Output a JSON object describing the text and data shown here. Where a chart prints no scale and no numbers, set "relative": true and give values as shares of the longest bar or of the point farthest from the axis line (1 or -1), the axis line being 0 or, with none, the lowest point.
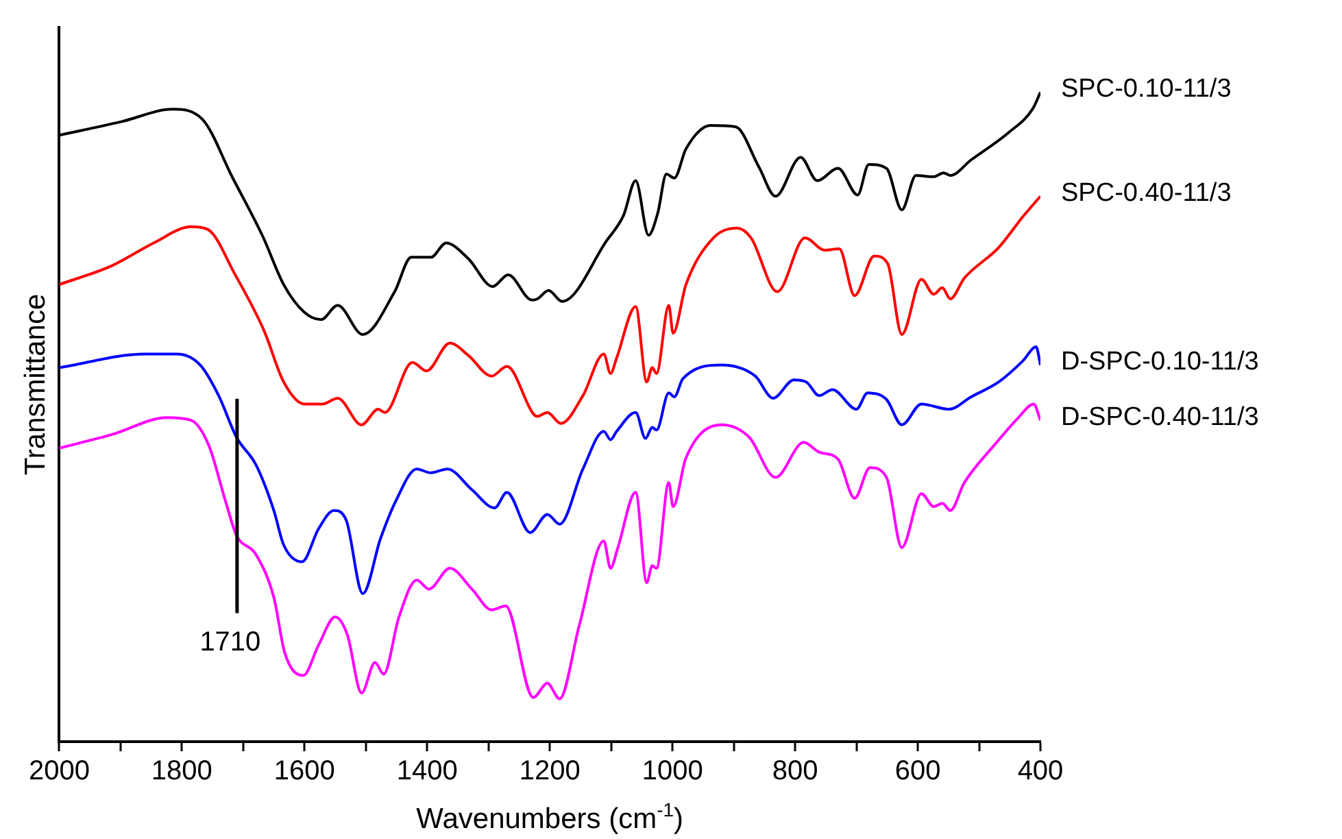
{
  "chart_data": {
    "type": "line",
    "relative": true,
    "xlabel": "Wavenumbers (cm$^{-1}$)",
    "ylabel": "Transmittance",
    "xlim": [
      2000,
      400
    ],
    "xticks": [
      2000,
      {
        "value": 1900,
        "label": null
      },
      1800,
      {
        "value": 1700,
        "label": null
      },
      1600,
      {
        "value": 1500,
        "label": null
      },
      1400,
      {
        "value": 1300,
        "label": null
      },
      1200,
      {
        "value": 1100,
        "label": null
      },
      1000,
      {
        "value": 900,
        "label": null
      },
      800,
      {
        "value": 700,
        "label": null
      },
      600,
      {
        "value": 500,
        "label": null
      },
      400
    ],
    "grid": false,
    "legend": false,
    "ref_lines": [
      {
        "axis": "x",
        "value": 1710,
        "label": "1710",
        "color": "#000000"
      }
    ],
    "series": [
      {
        "name": "SPC-0.10-11/3",
        "color": "#000000",
        "x": [
          2000,
          1898,
          1815,
          1767,
          1717,
          1668,
          1634,
          1600,
          1573,
          1546,
          1505,
          1453,
          1426,
          1394,
          1369,
          1333,
          1293,
          1268,
          1229,
          1220,
          1202,
          1180,
          1107,
          1080,
          1060,
          1039,
          1024,
          1010,
          997,
          978,
          938,
          897,
          859,
          832,
          791,
          764,
          730,
          698,
          680,
          651,
          626,
          603,
          574,
          558,
          547,
          513,
          452,
          413,
          400
        ],
        "values": [
          0.934,
          0.955,
          0.974,
          0.959,
          0.868,
          0.778,
          0.704,
          0.661,
          0.65,
          0.672,
          0.627,
          0.693,
          0.746,
          0.746,
          0.768,
          0.744,
          0.701,
          0.719,
          0.68,
          0.682,
          0.695,
          0.678,
          0.772,
          0.81,
          0.864,
          0.78,
          0.814,
          0.874,
          0.868,
          0.913,
          0.949,
          0.947,
          0.885,
          0.84,
          0.9,
          0.864,
          0.883,
          0.842,
          0.889,
          0.883,
          0.819,
          0.872,
          0.87,
          0.876,
          0.872,
          0.896,
          0.938,
          0.974,
          1.0
        ]
      },
      {
        "name": "SPC-0.40-11/3",
        "color": "#ff0000",
        "x": [
          2000,
          1914,
          1846,
          1785,
          1758,
          1713,
          1666,
          1634,
          1600,
          1571,
          1546,
          1507,
          1480,
          1469,
          1424,
          1401,
          1363,
          1333,
          1295,
          1270,
          1227,
          1220,
          1204,
          1182,
          1146,
          1112,
          1101,
          1091,
          1060,
          1042,
          1033,
          1026,
          1006,
          999,
          978,
          933,
          895,
          872,
          829,
          784,
          752,
          728,
          703,
          671,
          649,
          626,
          594,
          574,
          560,
          547,
          524,
          468,
          429,
          400
        ],
        "values": [
          0.704,
          0.733,
          0.768,
          0.793,
          0.789,
          0.719,
          0.633,
          0.554,
          0.52,
          0.52,
          0.529,
          0.488,
          0.512,
          0.507,
          0.584,
          0.571,
          0.614,
          0.595,
          0.563,
          0.578,
          0.505,
          0.501,
          0.507,
          0.49,
          0.533,
          0.597,
          0.567,
          0.591,
          0.67,
          0.554,
          0.576,
          0.567,
          0.672,
          0.629,
          0.704,
          0.776,
          0.791,
          0.776,
          0.693,
          0.776,
          0.757,
          0.759,
          0.687,
          0.748,
          0.736,
          0.627,
          0.712,
          0.689,
          0.699,
          0.682,
          0.714,
          0.761,
          0.808,
          0.84
        ]
      },
      {
        "name": "D-SPC-0.10-11/3",
        "color": "#0000ff",
        "x": [
          2000,
          1860,
          1808,
          1770,
          1740,
          1711,
          1679,
          1650,
          1634,
          1604,
          1577,
          1552,
          1532,
          1505,
          1476,
          1451,
          1417,
          1394,
          1367,
          1327,
          1290,
          1270,
          1232,
          1204,
          1184,
          1146,
          1112,
          1101,
          1091,
          1060,
          1044,
          1033,
          1026,
          1006,
          997,
          983,
          920,
          865,
          836,
          802,
          782,
          761,
          739,
          700,
          682,
          651,
          626,
          594,
          549,
          513,
          468,
          429,
          407,
          400
        ],
        "values": [
          0.576,
          0.597,
          0.597,
          0.58,
          0.533,
          0.469,
          0.426,
          0.356,
          0.303,
          0.277,
          0.328,
          0.356,
          0.341,
          0.228,
          0.313,
          0.371,
          0.42,
          0.414,
          0.42,
          0.388,
          0.36,
          0.384,
          0.322,
          0.35,
          0.335,
          0.42,
          0.478,
          0.465,
          0.478,
          0.507,
          0.467,
          0.484,
          0.48,
          0.537,
          0.531,
          0.559,
          0.58,
          0.563,
          0.529,
          0.557,
          0.554,
          0.533,
          0.542,
          0.512,
          0.537,
          0.527,
          0.488,
          0.52,
          0.512,
          0.531,
          0.554,
          0.586,
          0.608,
          0.58
        ]
      },
      {
        "name": "D-SPC-0.40-11/3",
        "color": "#ff00ff",
        "x": [
          2000,
          1914,
          1824,
          1785,
          1756,
          1729,
          1711,
          1679,
          1650,
          1632,
          1602,
          1577,
          1550,
          1530,
          1507,
          1485,
          1471,
          1446,
          1417,
          1397,
          1363,
          1327,
          1295,
          1272,
          1227,
          1204,
          1184,
          1152,
          1112,
          1101,
          1089,
          1060,
          1042,
          1033,
          1026,
          1006,
          999,
          978,
          920,
          875,
          832,
          786,
          761,
          730,
          703,
          678,
          651,
          626,
          594,
          574,
          560,
          547,
          524,
          474,
          436,
          411,
          400
        ],
        "values": [
          0.452,
          0.473,
          0.499,
          0.495,
          0.456,
          0.371,
          0.318,
          0.288,
          0.222,
          0.136,
          0.102,
          0.149,
          0.192,
          0.164,
          0.075,
          0.122,
          0.104,
          0.192,
          0.249,
          0.235,
          0.267,
          0.235,
          0.203,
          0.209,
          0.068,
          0.09,
          0.066,
          0.179,
          0.309,
          0.267,
          0.299,
          0.384,
          0.245,
          0.271,
          0.267,
          0.399,
          0.362,
          0.437,
          0.488,
          0.469,
          0.407,
          0.461,
          0.446,
          0.435,
          0.375,
          0.422,
          0.407,
          0.299,
          0.382,
          0.362,
          0.367,
          0.356,
          0.399,
          0.458,
          0.499,
          0.52,
          0.495
        ]
      }
    ]
  }
}
